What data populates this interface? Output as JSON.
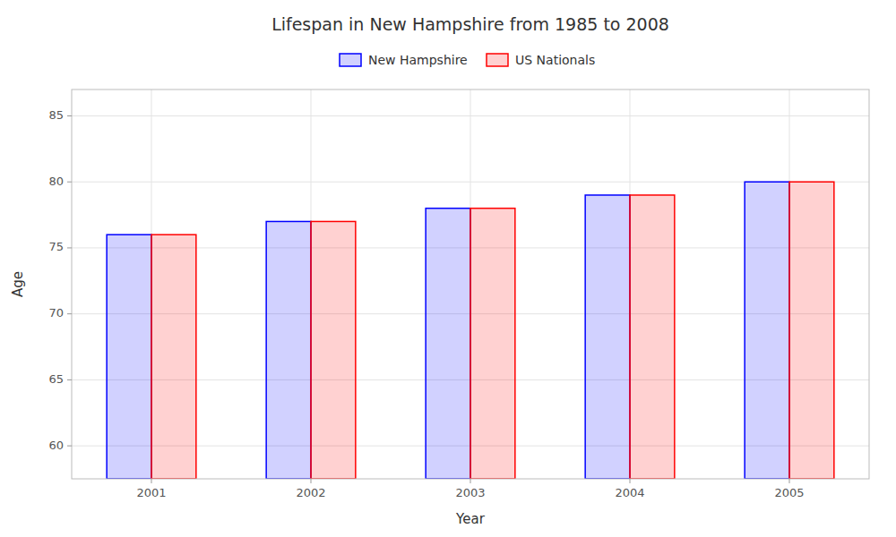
{
  "chart_data": {
    "type": "bar",
    "title": "Lifespan in New Hampshire from 1985 to 2008",
    "x_label": "Year",
    "y_label": "Age",
    "categories": [
      "2001",
      "2002",
      "2003",
      "2004",
      "2005"
    ],
    "series": [
      {
        "name": "New Hampshire",
        "color": "#0000ff",
        "values": [
          76,
          77,
          78,
          79,
          80
        ]
      },
      {
        "name": "US Nationals",
        "color": "#ff0000",
        "values": [
          76,
          77,
          78,
          79,
          80
        ]
      }
    ],
    "ylim": [
      57.5,
      87
    ],
    "yticks": [
      60,
      65,
      70,
      75,
      80,
      85
    ],
    "grid": true,
    "legend": "top"
  }
}
